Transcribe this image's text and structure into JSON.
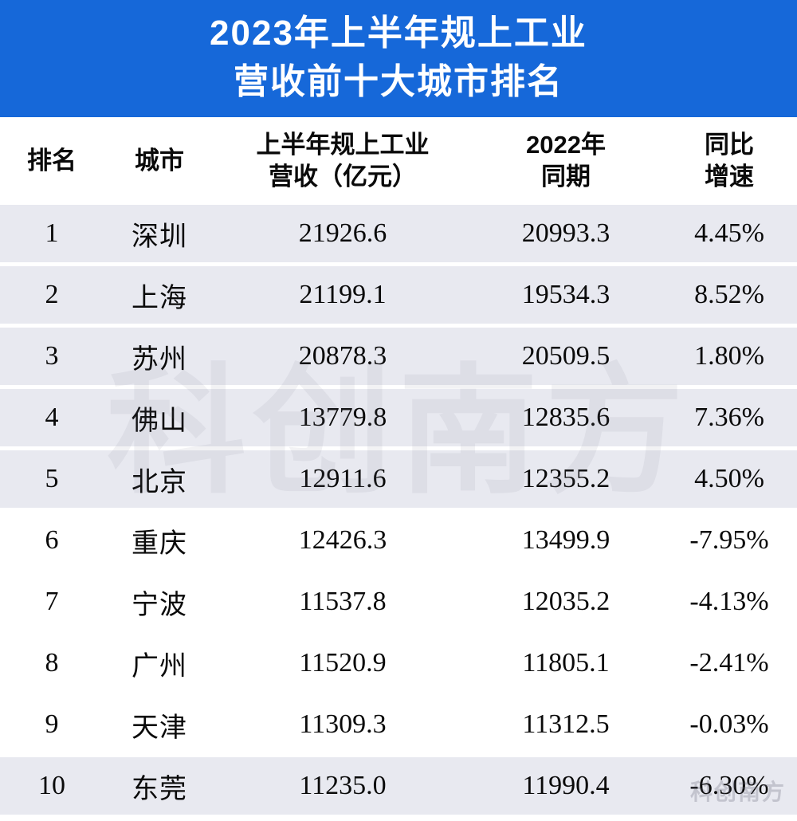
{
  "title": {
    "line1": "2023年上半年规上工业",
    "line2": "营收前十大城市排名"
  },
  "table": {
    "columns": [
      {
        "label": "排名"
      },
      {
        "label": "城市"
      },
      {
        "label": "上半年规上工业\n营收（亿元）"
      },
      {
        "label": "2022年\n同期"
      },
      {
        "label": "同比\n增速"
      }
    ],
    "rows": [
      {
        "rank": "1",
        "city": "深圳",
        "revenue": "21926.6",
        "prev": "20993.3",
        "growth": "4.45%",
        "shaded": true
      },
      {
        "rank": "2",
        "city": "上海",
        "revenue": "21199.1",
        "prev": "19534.3",
        "growth": "8.52%",
        "shaded": true
      },
      {
        "rank": "3",
        "city": "苏州",
        "revenue": "20878.3",
        "prev": "20509.5",
        "growth": "1.80%",
        "shaded": true
      },
      {
        "rank": "4",
        "city": "佛山",
        "revenue": "13779.8",
        "prev": "12835.6",
        "growth": "7.36%",
        "shaded": true
      },
      {
        "rank": "5",
        "city": "北京",
        "revenue": "12911.6",
        "prev": "12355.2",
        "growth": "4.50%",
        "shaded": true
      },
      {
        "rank": "6",
        "city": "重庆",
        "revenue": "12426.3",
        "prev": "13499.9",
        "growth": "-7.95%",
        "shaded": false
      },
      {
        "rank": "7",
        "city": "宁波",
        "revenue": "11537.8",
        "prev": "12035.2",
        "growth": "-4.13%",
        "shaded": false
      },
      {
        "rank": "8",
        "city": "广州",
        "revenue": "11520.9",
        "prev": "11805.1",
        "growth": "-2.41%",
        "shaded": false
      },
      {
        "rank": "9",
        "city": "天津",
        "revenue": "11309.3",
        "prev": "11312.5",
        "growth": "-0.03%",
        "shaded": false
      },
      {
        "rank": "10",
        "city": "东莞",
        "revenue": "11235.0",
        "prev": "11990.4",
        "growth": "-6.30%",
        "shaded": true
      }
    ]
  },
  "watermark": {
    "text": "科创南方",
    "corner_text": "科创南方"
  },
  "colors": {
    "title_bg": "#1668d9",
    "title_text": "#ffffff",
    "shaded_row": "#e8e9f0",
    "body_text": "#0a0a0a"
  },
  "chart_data": {
    "type": "table",
    "title": "2023年上半年规上工业营收前十大城市排名",
    "columns": [
      "排名",
      "城市",
      "上半年规上工业营收（亿元）",
      "2022年同期",
      "同比增速"
    ],
    "rows": [
      [
        1,
        "深圳",
        21926.6,
        20993.3,
        "4.45%"
      ],
      [
        2,
        "上海",
        21199.1,
        19534.3,
        "8.52%"
      ],
      [
        3,
        "苏州",
        20878.3,
        20509.5,
        "1.80%"
      ],
      [
        4,
        "佛山",
        13779.8,
        12835.6,
        "7.36%"
      ],
      [
        5,
        "北京",
        12911.6,
        12355.2,
        "4.50%"
      ],
      [
        6,
        "重庆",
        12426.3,
        13499.9,
        "-7.95%"
      ],
      [
        7,
        "宁波",
        11537.8,
        12035.2,
        "-4.13%"
      ],
      [
        8,
        "广州",
        11520.9,
        11805.1,
        "-2.41%"
      ],
      [
        9,
        "天津",
        11309.3,
        11312.5,
        "-0.03%"
      ],
      [
        10,
        "东莞",
        11235.0,
        11990.4,
        "-6.30%"
      ]
    ]
  }
}
